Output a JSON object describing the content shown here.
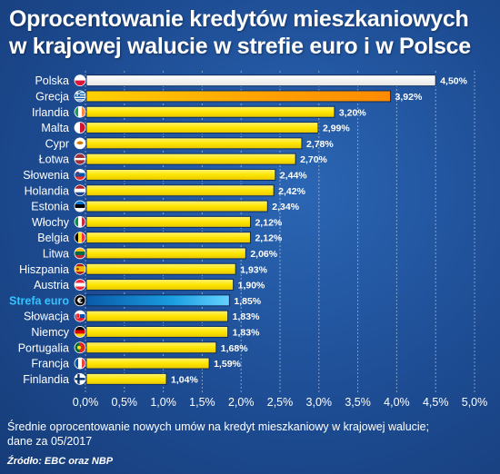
{
  "title": {
    "line1": "Oprocentowanie kredytów mieszkaniowych",
    "line2": "w krajowej walucie w strefie euro i w Polsce"
  },
  "note": {
    "line1": "Średnie oprocentowanie nowych umów na kredyt mieszkaniowy w krajowej walucie;",
    "line2": "dane za 05/2017"
  },
  "source": "Źródło: EBC oraz NBP",
  "colors": {
    "bar_default": "#ffe600",
    "bar_poland": "#ffffff",
    "bar_greece": "#ff8a00",
    "bar_eurozone": "#1a9de0",
    "label_eurozone": "#33c3ff"
  },
  "chart_data": {
    "type": "bar",
    "orientation": "horizontal",
    "categories": [
      "Polska",
      "Grecja",
      "Irlandia",
      "Malta",
      "Cypr",
      "Łotwa",
      "Słowenia",
      "Holandia",
      "Estonia",
      "Włochy",
      "Belgia",
      "Litwa",
      "Hiszpania",
      "Austria",
      "Strefa euro",
      "Słowacja",
      "Niemcy",
      "Portugalia",
      "Francja",
      "Finlandia"
    ],
    "values": [
      4.5,
      3.92,
      3.2,
      2.99,
      2.78,
      2.7,
      2.44,
      2.42,
      2.34,
      2.12,
      2.12,
      2.06,
      1.93,
      1.9,
      1.85,
      1.83,
      1.83,
      1.68,
      1.59,
      1.04
    ],
    "value_labels": [
      "4,50%",
      "3,92%",
      "3,20%",
      "2,99%",
      "2,78%",
      "2,70%",
      "2,44%",
      "2,42%",
      "2,34%",
      "2,12%",
      "2,12%",
      "2,06%",
      "1,93%",
      "1,90%",
      "1,85%",
      "1,83%",
      "1,83%",
      "1,68%",
      "1,59%",
      "1,04%"
    ],
    "flags": [
      "poland",
      "greece",
      "ireland",
      "malta",
      "cyprus",
      "latvia",
      "slovenia",
      "netherlands",
      "estonia",
      "italy",
      "belgium",
      "lithuania",
      "spain",
      "austria",
      "euro",
      "slovakia",
      "germany",
      "portugal",
      "france",
      "finland"
    ],
    "xlim": [
      0,
      5
    ],
    "xticks": [
      0,
      0.5,
      1,
      1.5,
      2,
      2.5,
      3,
      3.5,
      4,
      4.5,
      5
    ],
    "xtick_labels": [
      "0,0%",
      "0,5%",
      "1,0%",
      "1,5%",
      "2,0%",
      "2,5%",
      "3,0%",
      "3,5%",
      "4,0%",
      "4,5%",
      "5,0%"
    ],
    "grid": true,
    "xlabel": "",
    "ylabel": ""
  }
}
